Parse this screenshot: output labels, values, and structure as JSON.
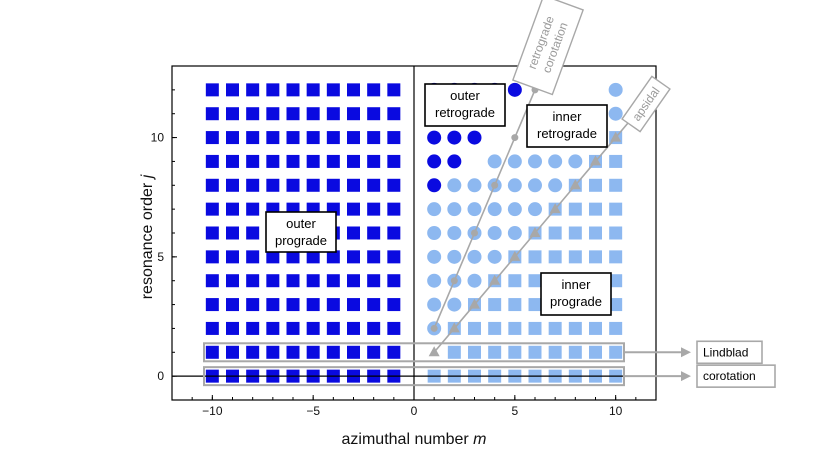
{
  "chart_data": {
    "type": "scatter",
    "xlabel": "azimuthal number",
    "xlabel_symbol": "m",
    "ylabel": "resonance order",
    "ylabel_symbol": "j",
    "xlim": [
      -12,
      12
    ],
    "ylim": [
      -1,
      13
    ],
    "x_ticks": [
      -10,
      -5,
      0,
      5,
      10
    ],
    "x_tick_labels": [
      "−10",
      "−5",
      "0",
      "5",
      "10"
    ],
    "y_ticks": [
      0,
      5,
      10
    ],
    "y_tick_labels": [
      "0",
      "5",
      "10"
    ],
    "grid": false,
    "colors": {
      "dark": "#0a0ae0",
      "light": "#8db8f0",
      "gray": "#a8a8a8"
    },
    "series": [
      {
        "region": "outer-prograde",
        "marker": "square",
        "color": "dark",
        "x_range": [
          -10,
          -1
        ],
        "j_range": [
          0,
          12
        ]
      },
      {
        "region": "outer-retrograde",
        "marker": "circle",
        "color": "dark",
        "rule": "1 <= m <= j - 7"
      },
      {
        "region": "inner-retrograde",
        "marker": "circle",
        "color": "light",
        "rule": "m >= j - 6 and m >= 2*j - 14 and 1 <= m <= 10"
      },
      {
        "region": "inner-prograde",
        "marker": "square",
        "color": "light",
        "rule": "m > 2*j - 14 and m > j - 1 ... 1 <= m <= 10, j >= 0"
      }
    ],
    "lines": [
      {
        "name": "retrograde corotation",
        "marker": "circle",
        "points": [
          [
            1,
            2
          ],
          [
            2,
            4
          ],
          [
            3,
            6
          ],
          [
            4,
            8
          ],
          [
            5,
            10
          ],
          [
            6,
            12
          ],
          [
            6.8,
            13.8
          ]
        ]
      },
      {
        "name": "apsidal",
        "marker": "triangle",
        "points": [
          [
            1,
            1
          ],
          [
            2,
            2
          ],
          [
            3,
            3
          ],
          [
            4,
            4
          ],
          [
            5,
            5
          ],
          [
            6,
            6
          ],
          [
            7,
            7
          ],
          [
            8,
            8
          ],
          [
            9,
            9
          ],
          [
            10,
            10
          ],
          [
            10.9,
            10.9
          ]
        ]
      }
    ],
    "annotations": [
      {
        "lines": [
          "outer",
          "prograde"
        ]
      },
      {
        "lines": [
          "outer",
          "retrograde"
        ]
      },
      {
        "lines": [
          "inner",
          "retrograde"
        ]
      },
      {
        "lines": [
          "inner",
          "prograde"
        ]
      }
    ],
    "gray_labels": [
      {
        "lines": [
          "retrograde",
          "corotation"
        ]
      },
      {
        "lines": [
          "apsidal"
        ]
      }
    ],
    "row_boxes": [
      {
        "j": 1,
        "label": "Lindblad"
      },
      {
        "j": 0,
        "label": "corotation"
      }
    ]
  }
}
